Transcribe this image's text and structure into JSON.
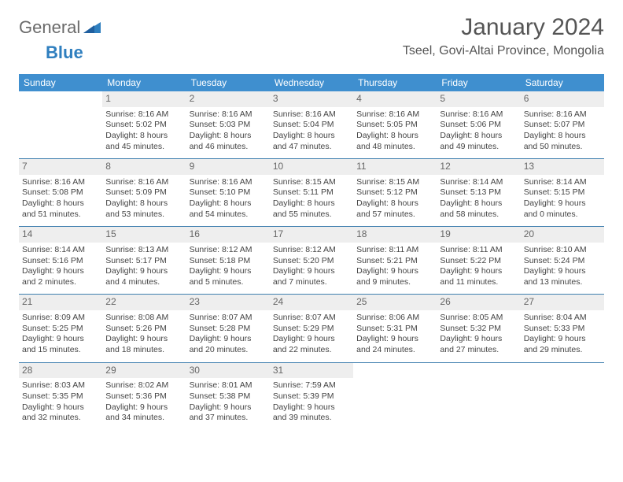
{
  "logo": {
    "general": "General",
    "blue": "Blue"
  },
  "title": "January 2024",
  "location": "Tseel, Govi-Altai Province, Mongolia",
  "colors": {
    "header_bg": "#3f8fcf",
    "header_text": "#ffffff",
    "daynum_bg": "#eeeeee",
    "rule": "#3f7faf",
    "logo_blue": "#2f7fbf"
  },
  "daysOfWeek": [
    "Sunday",
    "Monday",
    "Tuesday",
    "Wednesday",
    "Thursday",
    "Friday",
    "Saturday"
  ],
  "weeks": [
    [
      {
        "n": "",
        "sr": "",
        "ss": "",
        "dl": ""
      },
      {
        "n": "1",
        "sr": "Sunrise: 8:16 AM",
        "ss": "Sunset: 5:02 PM",
        "dl": "Daylight: 8 hours and 45 minutes."
      },
      {
        "n": "2",
        "sr": "Sunrise: 8:16 AM",
        "ss": "Sunset: 5:03 PM",
        "dl": "Daylight: 8 hours and 46 minutes."
      },
      {
        "n": "3",
        "sr": "Sunrise: 8:16 AM",
        "ss": "Sunset: 5:04 PM",
        "dl": "Daylight: 8 hours and 47 minutes."
      },
      {
        "n": "4",
        "sr": "Sunrise: 8:16 AM",
        "ss": "Sunset: 5:05 PM",
        "dl": "Daylight: 8 hours and 48 minutes."
      },
      {
        "n": "5",
        "sr": "Sunrise: 8:16 AM",
        "ss": "Sunset: 5:06 PM",
        "dl": "Daylight: 8 hours and 49 minutes."
      },
      {
        "n": "6",
        "sr": "Sunrise: 8:16 AM",
        "ss": "Sunset: 5:07 PM",
        "dl": "Daylight: 8 hours and 50 minutes."
      }
    ],
    [
      {
        "n": "7",
        "sr": "Sunrise: 8:16 AM",
        "ss": "Sunset: 5:08 PM",
        "dl": "Daylight: 8 hours and 51 minutes."
      },
      {
        "n": "8",
        "sr": "Sunrise: 8:16 AM",
        "ss": "Sunset: 5:09 PM",
        "dl": "Daylight: 8 hours and 53 minutes."
      },
      {
        "n": "9",
        "sr": "Sunrise: 8:16 AM",
        "ss": "Sunset: 5:10 PM",
        "dl": "Daylight: 8 hours and 54 minutes."
      },
      {
        "n": "10",
        "sr": "Sunrise: 8:15 AM",
        "ss": "Sunset: 5:11 PM",
        "dl": "Daylight: 8 hours and 55 minutes."
      },
      {
        "n": "11",
        "sr": "Sunrise: 8:15 AM",
        "ss": "Sunset: 5:12 PM",
        "dl": "Daylight: 8 hours and 57 minutes."
      },
      {
        "n": "12",
        "sr": "Sunrise: 8:14 AM",
        "ss": "Sunset: 5:13 PM",
        "dl": "Daylight: 8 hours and 58 minutes."
      },
      {
        "n": "13",
        "sr": "Sunrise: 8:14 AM",
        "ss": "Sunset: 5:15 PM",
        "dl": "Daylight: 9 hours and 0 minutes."
      }
    ],
    [
      {
        "n": "14",
        "sr": "Sunrise: 8:14 AM",
        "ss": "Sunset: 5:16 PM",
        "dl": "Daylight: 9 hours and 2 minutes."
      },
      {
        "n": "15",
        "sr": "Sunrise: 8:13 AM",
        "ss": "Sunset: 5:17 PM",
        "dl": "Daylight: 9 hours and 4 minutes."
      },
      {
        "n": "16",
        "sr": "Sunrise: 8:12 AM",
        "ss": "Sunset: 5:18 PM",
        "dl": "Daylight: 9 hours and 5 minutes."
      },
      {
        "n": "17",
        "sr": "Sunrise: 8:12 AM",
        "ss": "Sunset: 5:20 PM",
        "dl": "Daylight: 9 hours and 7 minutes."
      },
      {
        "n": "18",
        "sr": "Sunrise: 8:11 AM",
        "ss": "Sunset: 5:21 PM",
        "dl": "Daylight: 9 hours and 9 minutes."
      },
      {
        "n": "19",
        "sr": "Sunrise: 8:11 AM",
        "ss": "Sunset: 5:22 PM",
        "dl": "Daylight: 9 hours and 11 minutes."
      },
      {
        "n": "20",
        "sr": "Sunrise: 8:10 AM",
        "ss": "Sunset: 5:24 PM",
        "dl": "Daylight: 9 hours and 13 minutes."
      }
    ],
    [
      {
        "n": "21",
        "sr": "Sunrise: 8:09 AM",
        "ss": "Sunset: 5:25 PM",
        "dl": "Daylight: 9 hours and 15 minutes."
      },
      {
        "n": "22",
        "sr": "Sunrise: 8:08 AM",
        "ss": "Sunset: 5:26 PM",
        "dl": "Daylight: 9 hours and 18 minutes."
      },
      {
        "n": "23",
        "sr": "Sunrise: 8:07 AM",
        "ss": "Sunset: 5:28 PM",
        "dl": "Daylight: 9 hours and 20 minutes."
      },
      {
        "n": "24",
        "sr": "Sunrise: 8:07 AM",
        "ss": "Sunset: 5:29 PM",
        "dl": "Daylight: 9 hours and 22 minutes."
      },
      {
        "n": "25",
        "sr": "Sunrise: 8:06 AM",
        "ss": "Sunset: 5:31 PM",
        "dl": "Daylight: 9 hours and 24 minutes."
      },
      {
        "n": "26",
        "sr": "Sunrise: 8:05 AM",
        "ss": "Sunset: 5:32 PM",
        "dl": "Daylight: 9 hours and 27 minutes."
      },
      {
        "n": "27",
        "sr": "Sunrise: 8:04 AM",
        "ss": "Sunset: 5:33 PM",
        "dl": "Daylight: 9 hours and 29 minutes."
      }
    ],
    [
      {
        "n": "28",
        "sr": "Sunrise: 8:03 AM",
        "ss": "Sunset: 5:35 PM",
        "dl": "Daylight: 9 hours and 32 minutes."
      },
      {
        "n": "29",
        "sr": "Sunrise: 8:02 AM",
        "ss": "Sunset: 5:36 PM",
        "dl": "Daylight: 9 hours and 34 minutes."
      },
      {
        "n": "30",
        "sr": "Sunrise: 8:01 AM",
        "ss": "Sunset: 5:38 PM",
        "dl": "Daylight: 9 hours and 37 minutes."
      },
      {
        "n": "31",
        "sr": "Sunrise: 7:59 AM",
        "ss": "Sunset: 5:39 PM",
        "dl": "Daylight: 9 hours and 39 minutes."
      },
      {
        "n": "",
        "sr": "",
        "ss": "",
        "dl": ""
      },
      {
        "n": "",
        "sr": "",
        "ss": "",
        "dl": ""
      },
      {
        "n": "",
        "sr": "",
        "ss": "",
        "dl": ""
      }
    ]
  ]
}
